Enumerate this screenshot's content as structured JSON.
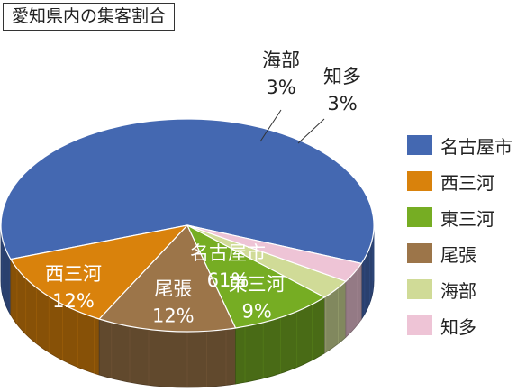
{
  "chart_data": {
    "type": "pie",
    "title": "愛知県内の集客割合",
    "slices": [
      {
        "label": "名古屋市",
        "value": 61,
        "value_text": "61%",
        "color": "#4468b1"
      },
      {
        "label": "西三河",
        "value": 12,
        "value_text": "12%",
        "color": "#d9820c"
      },
      {
        "label": "尾張",
        "value": 12,
        "value_text": "12%",
        "color": "#9c7549"
      },
      {
        "label": "東三河",
        "value": 9,
        "value_text": "9%",
        "color": "#76ad23"
      },
      {
        "label": "海部",
        "value": 3,
        "value_text": "3%",
        "color": "#d0db97"
      },
      {
        "label": "知多",
        "value": 3,
        "value_text": "3%",
        "color": "#eec4d6"
      }
    ],
    "legend": [
      "名古屋市",
      "西三河",
      "東三河",
      "尾張",
      "海部",
      "知多"
    ],
    "legend_position": "right",
    "style": "3d"
  }
}
